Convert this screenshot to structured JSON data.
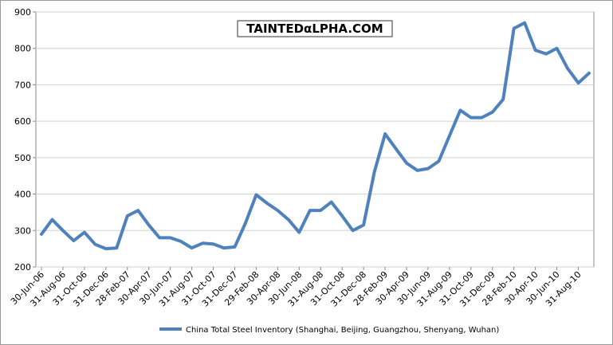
{
  "chart_data": {
    "type": "line",
    "watermark": "TAINTEDαLPHA.COM",
    "categories": [
      "30-Jun-06",
      null,
      "31-Aug-06",
      null,
      "31-Oct-06",
      null,
      "31-Dec-06",
      null,
      "28-Feb-07",
      null,
      "30-Apr-07",
      null,
      "30-Jun-07",
      null,
      "31-Aug-07",
      null,
      "31-Oct-07",
      null,
      "31-Dec-07",
      null,
      "29-Feb-08",
      null,
      "30-Apr-08",
      null,
      "30-Jun-08",
      null,
      "31-Aug-08",
      null,
      "31-Oct-08",
      null,
      "31-Dec-08",
      null,
      "28-Feb-09",
      null,
      "30-Apr-09",
      null,
      "30-Jun-09",
      null,
      "31-Aug-09",
      null,
      "31-Oct-09",
      null,
      "31-Dec-09",
      null,
      "28-Feb-10",
      null,
      "30-Apr-10",
      null,
      "30-Jun-10",
      null,
      "31-Aug-10",
      null
    ],
    "series": [
      {
        "name": "China Total Steel Inventory (Shanghai, Beijing, Guangzhou, Shenyang, Wuhan)",
        "color": "#4f81bd",
        "values": [
          290,
          330,
          300,
          272,
          295,
          262,
          250,
          252,
          340,
          355,
          315,
          280,
          280,
          270,
          252,
          265,
          263,
          252,
          255,
          320,
          398,
          375,
          355,
          330,
          295,
          355,
          355,
          378,
          340,
          300,
          315,
          460,
          565,
          525,
          485,
          465,
          470,
          490,
          560,
          630,
          610,
          610,
          625,
          660,
          855,
          870,
          795,
          785,
          800,
          745,
          705,
          732
        ]
      }
    ],
    "ylim": [
      200,
      900
    ],
    "yticks": [
      200,
      300,
      400,
      500,
      600,
      700,
      800,
      900
    ],
    "grid": true,
    "legend": "bottom"
  }
}
